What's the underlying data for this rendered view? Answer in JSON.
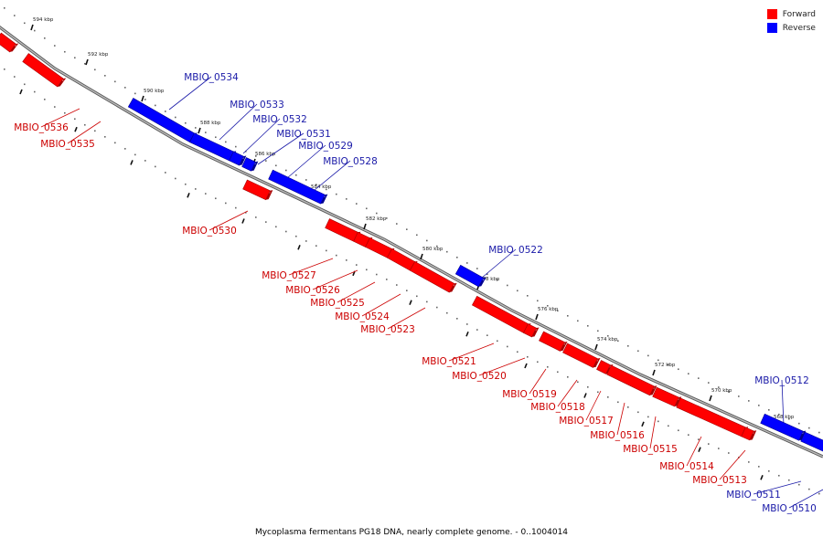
{
  "colors": {
    "forward": "#ff0000",
    "reverse": "#0000ff",
    "axis": "#888888",
    "forward_label": "#cc0000",
    "reverse_label": "#1a1aa8"
  },
  "legend": {
    "forward_label": "Forward",
    "reverse_label": "Reverse"
  },
  "caption": "Mycoplasma fermentans PG18 DNA, nearly complete genome. - 0..1004014",
  "ticks": [
    {
      "label": "594 kbp",
      "kbp": 594
    },
    {
      "label": "592 kbp",
      "kbp": 592
    },
    {
      "label": "590 kbp",
      "kbp": 590
    },
    {
      "label": "588 kbp",
      "kbp": 588
    },
    {
      "label": "586 kbp",
      "kbp": 586
    },
    {
      "label": "584 kbp",
      "kbp": 584
    },
    {
      "label": "582 kbp",
      "kbp": 582
    },
    {
      "label": "580 kbp",
      "kbp": 580
    },
    {
      "label": "578 kbp",
      "kbp": 578
    },
    {
      "label": "576 kbp",
      "kbp": 576
    },
    {
      "label": "574 kbp",
      "kbp": 574
    },
    {
      "label": "572 kbp",
      "kbp": 572
    },
    {
      "label": "570 kbp",
      "kbp": 570
    },
    {
      "label": "568 kbp",
      "kbp": 568
    }
  ],
  "genes": [
    {
      "name": "MBIO_0536",
      "strand": "forward"
    },
    {
      "name": "MBIO_0535",
      "strand": "forward"
    },
    {
      "name": "MBIO_0534",
      "strand": "reverse"
    },
    {
      "name": "MBIO_0533",
      "strand": "reverse"
    },
    {
      "name": "MBIO_0532",
      "strand": "reverse"
    },
    {
      "name": "MBIO_0531",
      "strand": "reverse"
    },
    {
      "name": "MBIO_0530",
      "strand": "forward"
    },
    {
      "name": "MBIO_0529",
      "strand": "reverse"
    },
    {
      "name": "MBIO_0528",
      "strand": "reverse"
    },
    {
      "name": "MBIO_0527",
      "strand": "forward"
    },
    {
      "name": "MBIO_0526",
      "strand": "forward"
    },
    {
      "name": "MBIO_0525",
      "strand": "forward"
    },
    {
      "name": "MBIO_0524",
      "strand": "forward"
    },
    {
      "name": "MBIO_0523",
      "strand": "forward"
    },
    {
      "name": "MBIO_0522",
      "strand": "reverse"
    },
    {
      "name": "MBIO_0521",
      "strand": "forward"
    },
    {
      "name": "MBIO_0520",
      "strand": "forward"
    },
    {
      "name": "MBIO_0519",
      "strand": "forward"
    },
    {
      "name": "MBIO_0518",
      "strand": "forward"
    },
    {
      "name": "MBIO_0517",
      "strand": "forward"
    },
    {
      "name": "MBIO_0516",
      "strand": "forward"
    },
    {
      "name": "MBIO_0515",
      "strand": "forward"
    },
    {
      "name": "MBIO_0514",
      "strand": "forward"
    },
    {
      "name": "MBIO_0513",
      "strand": "forward"
    },
    {
      "name": "MBIO_0512",
      "strand": "reverse"
    },
    {
      "name": "MBIO_0511",
      "strand": "reverse"
    },
    {
      "name": "MBIO_0510",
      "strand": "reverse"
    }
  ]
}
